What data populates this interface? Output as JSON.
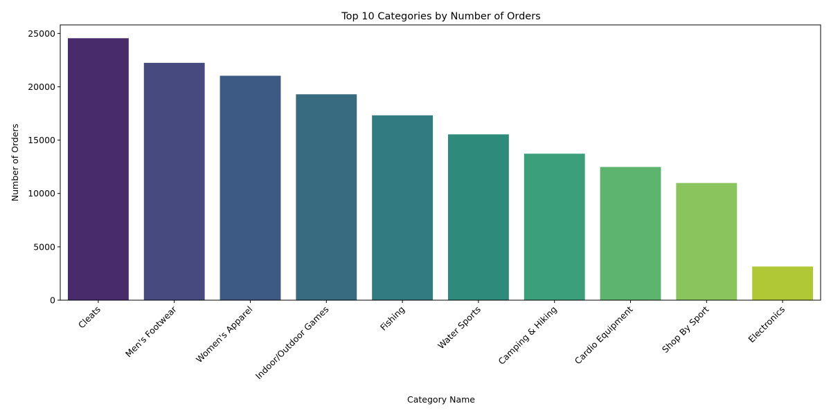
{
  "chart_data": {
    "type": "bar",
    "title": "Top 10 Categories by Number of Orders",
    "xlabel": "Category Name",
    "ylabel": "Number of Orders",
    "categories": [
      "Cleats",
      "Men's Footwear",
      "Women's Apparel",
      "Indoor/Outdoor Games",
      "Fishing",
      "Water Sports",
      "Camping & Hiking",
      "Cardio Equipment",
      "Shop By Sport",
      "Electronics"
    ],
    "values": [
      24551,
      22246,
      21035,
      19298,
      17325,
      15540,
      13729,
      12487,
      10984,
      3156
    ],
    "colors": [
      "#482b6b",
      "#474a7f",
      "#3d5a84",
      "#386b7f",
      "#327b80",
      "#2e8b7b",
      "#3a9f7a",
      "#5db46f",
      "#89c45c",
      "#b1c836"
    ],
    "ylim": [
      0,
      25800
    ],
    "yticks": [
      0,
      5000,
      10000,
      15000,
      20000,
      25000
    ],
    "grid": false,
    "legend": false
  }
}
